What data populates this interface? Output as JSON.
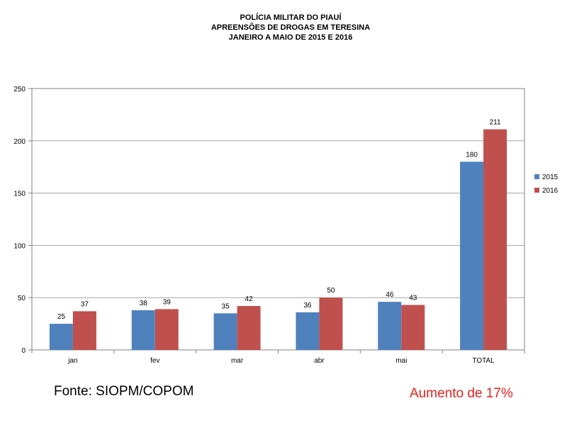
{
  "colors": {
    "series_2015": "#4f81bd",
    "series_2016": "#c0504d",
    "grid": "#a6a6a6",
    "note_red": "#e8211d"
  },
  "notes": {
    "source": "Fonte: SIOPM/COPOM",
    "increase": "Aumento de 17%"
  },
  "chart_data": {
    "type": "bar",
    "title": [
      "POLÍCIA MILITAR DO PIAUÍ",
      "APREENSÕES DE DROGAS  EM TERESINA",
      "JANEIRO A MAIO DE  2015  E 2016"
    ],
    "xlabel": "",
    "ylabel": "",
    "categories": [
      "jan",
      "fev",
      "mar",
      "abr",
      "mai",
      "TOTAL"
    ],
    "series": [
      {
        "name": "2015",
        "values": [
          25,
          38,
          35,
          36,
          46,
          180
        ]
      },
      {
        "name": "2016",
        "values": [
          37,
          39,
          42,
          50,
          43,
          211
        ]
      }
    ],
    "ylim": [
      0,
      250
    ],
    "yticks": [
      0,
      50,
      100,
      150,
      200,
      250
    ],
    "grid": true,
    "legend_position": "right",
    "data_labels": true
  }
}
